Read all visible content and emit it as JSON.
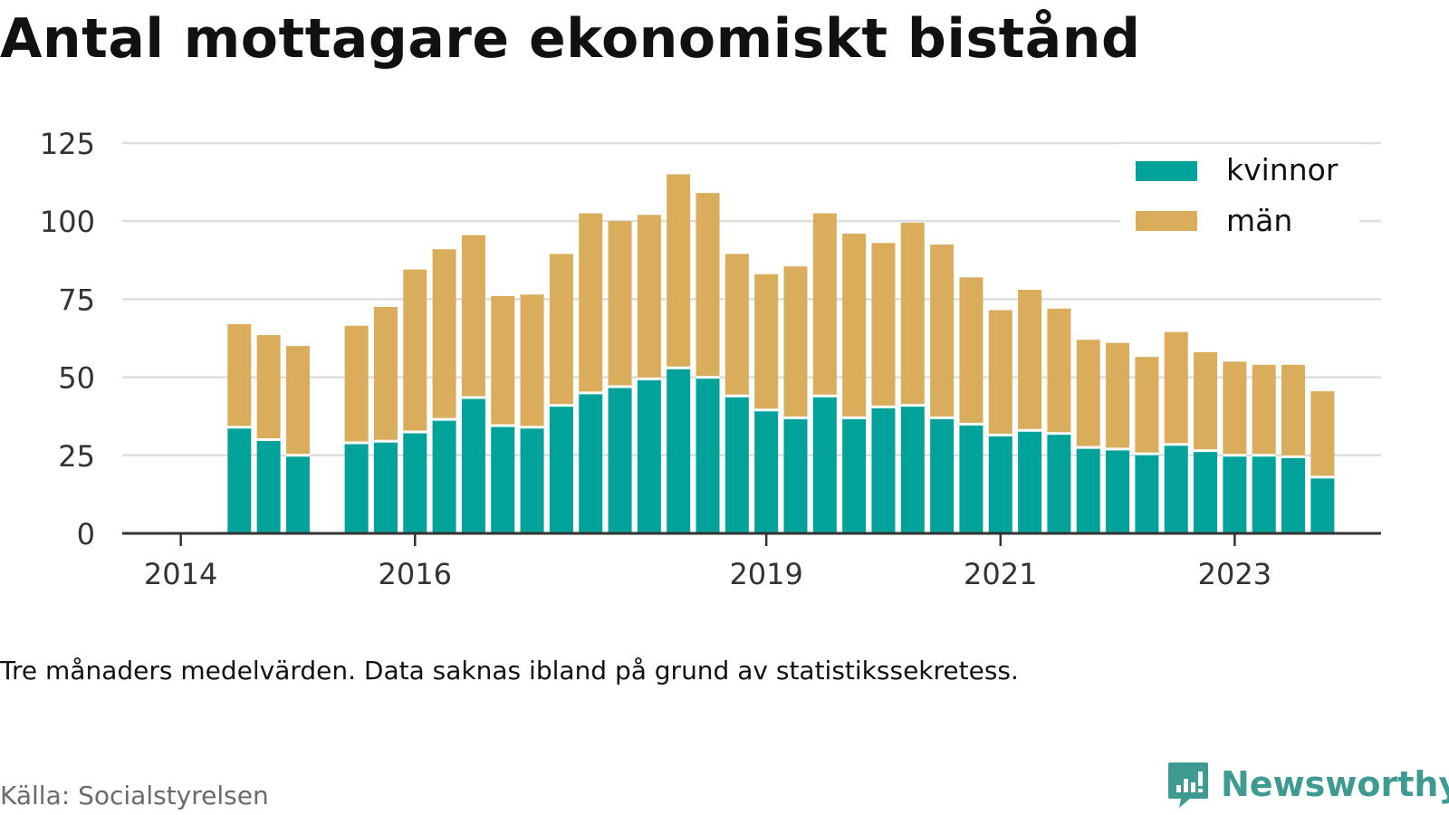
{
  "title": "Antal mottagare ekonomiskt bistånd",
  "note": "Tre månaders medelvärden. Data saknas ibland på grund av statistikssekretess.",
  "source": "Källa: Socialstyrelsen",
  "brand": "Newsworthy",
  "colors": {
    "kvinnor": "#00a29a",
    "man": "#d9ad5c",
    "grid": "#dddddd",
    "axis": "#333333",
    "brand": "#3f9b92"
  },
  "chart_data": {
    "type": "bar",
    "stacked": true,
    "ylim": [
      0,
      125
    ],
    "yticks": [
      0,
      25,
      50,
      75,
      100,
      125
    ],
    "ytick_labels": [
      "0",
      "25",
      "50",
      "75",
      "100",
      "125"
    ],
    "xticks": [
      {
        "label": "2014",
        "at": 2014.0
      },
      {
        "label": "2016",
        "at": 2016.0
      },
      {
        "label": "2019",
        "at": 2019.0
      },
      {
        "label": "2021",
        "at": 2021.0
      },
      {
        "label": "2023",
        "at": 2023.0
      }
    ],
    "xlim": [
      2013.5,
      2024.25
    ],
    "grid": true,
    "legend_position": "top-right",
    "periods": [
      2014.5,
      2014.75,
      2015.0,
      2015.5,
      2015.75,
      2016.0,
      2016.25,
      2016.5,
      2016.75,
      2017.0,
      2017.25,
      2017.5,
      2017.75,
      2018.0,
      2018.25,
      2018.5,
      2018.75,
      2019.0,
      2019.25,
      2019.5,
      2019.75,
      2020.0,
      2020.25,
      2020.5,
      2020.75,
      2021.0,
      2021.25,
      2021.5,
      2021.75,
      2022.0,
      2022.25,
      2022.5,
      2022.75,
      2023.0,
      2023.25,
      2023.5,
      2023.75
    ],
    "series": [
      {
        "name": "kvinnor",
        "values": [
          34,
          30,
          25,
          29,
          29.5,
          32.5,
          36.5,
          43.5,
          34.5,
          34,
          41,
          45,
          47,
          49.5,
          53,
          50,
          44,
          39.5,
          37,
          44,
          37,
          40.5,
          41,
          37,
          35,
          31.5,
          33,
          32,
          27.5,
          27,
          25.5,
          28.5,
          26.5,
          25,
          25,
          24.5,
          18
        ]
      },
      {
        "name": "män",
        "values": [
          33,
          33.5,
          35,
          37.5,
          43,
          52,
          54.5,
          52,
          41.5,
          42.5,
          48.5,
          57.5,
          53,
          52.5,
          62,
          59,
          45.5,
          43.5,
          48.5,
          58.5,
          59,
          52.5,
          58.5,
          55.5,
          47,
          40,
          45,
          40,
          34.5,
          34,
          31,
          36,
          31.5,
          30,
          29,
          29.5,
          27.5
        ]
      }
    ]
  }
}
